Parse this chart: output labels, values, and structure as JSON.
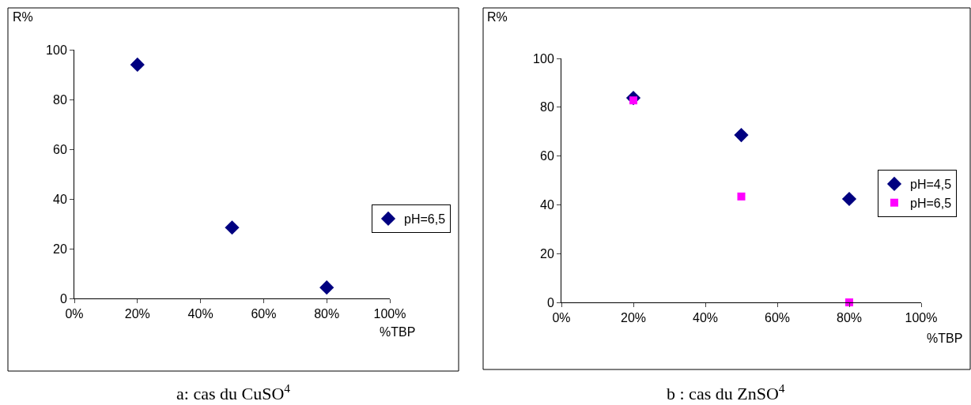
{
  "chart_data": [
    {
      "type": "scatter",
      "xlabel": "%TBP",
      "ylabel": "R%",
      "x": [
        0.2,
        0.5,
        0.8
      ],
      "series": [
        {
          "name": "pH=6,5",
          "color": "#000080",
          "marker": "diamond",
          "values": [
            94,
            28.5,
            4.4
          ]
        }
      ],
      "xlim": [
        0,
        1
      ],
      "xticks": [
        {
          "value": 0,
          "label": "0%"
        },
        {
          "value": 0.2,
          "label": "20%"
        },
        {
          "value": 0.4,
          "label": "40%"
        },
        {
          "value": 0.6,
          "label": "60%"
        },
        {
          "value": 0.8,
          "label": "80%"
        },
        {
          "value": 1,
          "label": "100%"
        }
      ],
      "ylim": [
        0,
        100
      ],
      "yticks": [
        0,
        20,
        40,
        60,
        80,
        100
      ],
      "legend": "right",
      "annotations": [
        "a: cas du CuSO$^{4}$"
      ]
    },
    {
      "type": "scatter",
      "xlabel": "%TBP",
      "ylabel": "R%",
      "x": [
        0.2,
        0.5,
        0.8
      ],
      "series": [
        {
          "name": "pH=4,5",
          "color": "#000080",
          "marker": "diamond",
          "values": [
            83.8,
            68.6,
            42.4
          ]
        },
        {
          "name": "pH=6,5",
          "color": "#ff00ff",
          "marker": "square",
          "values": [
            82.8,
            43.4,
            0
          ]
        }
      ],
      "xlim": [
        0,
        1
      ],
      "xticks": [
        {
          "value": 0,
          "label": "0%"
        },
        {
          "value": 0.2,
          "label": "20%"
        },
        {
          "value": 0.4,
          "label": "40%"
        },
        {
          "value": 0.6,
          "label": "60%"
        },
        {
          "value": 0.8,
          "label": "80%"
        },
        {
          "value": 1,
          "label": "100%"
        }
      ],
      "ylim": [
        0,
        100
      ],
      "yticks": [
        0,
        20,
        40,
        60,
        80,
        100
      ],
      "legend": "right",
      "annotations": [
        "b : cas du ZnSO$^{4}$"
      ]
    }
  ]
}
